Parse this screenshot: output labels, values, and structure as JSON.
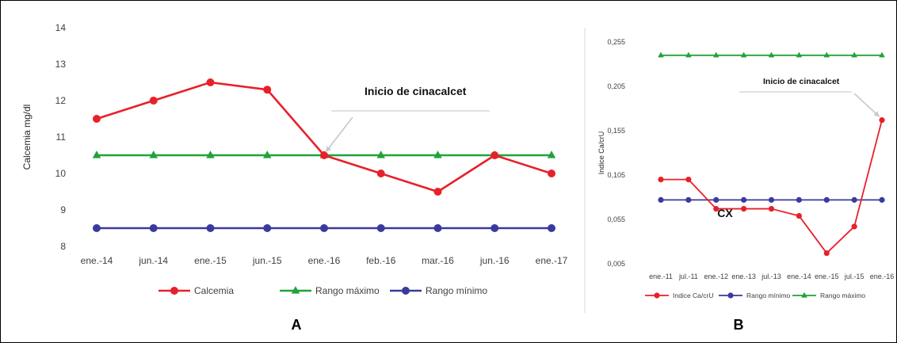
{
  "chart_data": [
    {
      "panel_label": "A",
      "type": "line",
      "ylabel": "Calcemia mg/dl",
      "ylim": [
        8,
        14
      ],
      "yticks": [
        "8",
        "9",
        "10",
        "11",
        "12",
        "13",
        "14"
      ],
      "categories": [
        "ene.-14",
        "jun.-14",
        "ene.-15",
        "jun.-15",
        "ene.-16",
        "feb.-16",
        "mar.-16",
        "jun.-16",
        "ene.-17"
      ],
      "series": [
        {
          "name": "Calcemia",
          "color": "#e8202a",
          "marker": "circle",
          "values": [
            11.5,
            12.0,
            12.5,
            12.3,
            10.5,
            10.0,
            9.5,
            10.5,
            10.0
          ]
        },
        {
          "name": "Rango máximo",
          "color": "#21a33a",
          "marker": "triangle",
          "values": [
            10.5,
            10.5,
            10.5,
            10.5,
            10.5,
            10.5,
            10.5,
            10.5,
            10.5
          ]
        },
        {
          "name": "Rango mínimo",
          "color": "#3a3a9e",
          "marker": "circle",
          "values": [
            8.5,
            8.5,
            8.5,
            8.5,
            8.5,
            8.5,
            8.5,
            8.5,
            8.5
          ]
        }
      ],
      "annotation": {
        "text": "Inicio de cinacalcet",
        "points_to_category": "ene.-16",
        "points_to_value": 10.5
      },
      "legend": "bottom",
      "grid": false
    },
    {
      "panel_label": "B",
      "type": "line",
      "ylabel": "Indice Ca/crU",
      "ylim": [
        0.005,
        0.255
      ],
      "yticks": [
        "0,005",
        "0,055",
        "0,105",
        "0,155",
        "0,205",
        "0,255"
      ],
      "categories": [
        "ene.-11",
        "jul.-11",
        "ene.-12",
        "ene.-13",
        "jul.-13",
        "ene.-14",
        "ene.-15",
        "jul.-15",
        "ene.-16"
      ],
      "series": [
        {
          "name": "Indice Ca/crU",
          "color": "#e8202a",
          "marker": "circle",
          "values": [
            0.1,
            0.1,
            0.067,
            0.067,
            0.067,
            0.059,
            0.017,
            0.047,
            0.167
          ]
        },
        {
          "name": "Rango mínimo",
          "color": "#3a3a9e",
          "marker": "circle",
          "values": [
            0.077,
            0.077,
            0.077,
            0.077,
            0.077,
            0.077,
            0.077,
            0.077,
            0.077
          ]
        },
        {
          "name": "Rango máximo",
          "color": "#21a33a",
          "marker": "triangle",
          "values": [
            0.24,
            0.24,
            0.24,
            0.24,
            0.24,
            0.24,
            0.24,
            0.24,
            0.24
          ]
        }
      ],
      "annotation": {
        "text": "Inicio de cinacalcet",
        "points_to_category": "ene.-16",
        "points_to_value": 0.167
      },
      "label_cx": {
        "text": "CX",
        "near_category": "ene.-12"
      },
      "legend": "bottom",
      "grid": false
    }
  ]
}
